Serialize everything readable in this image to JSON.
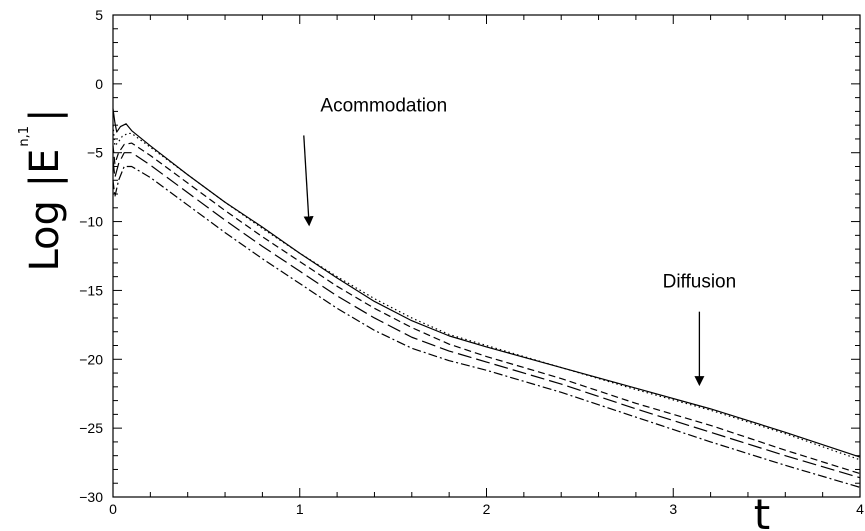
{
  "chart_data": {
    "type": "line",
    "title": "",
    "xlabel": "t",
    "ylabel": {
      "main": "Log |E",
      "superscript": "n,1",
      "close": "|"
    },
    "xlim": [
      0,
      4
    ],
    "ylim": [
      -30,
      5
    ],
    "x_ticks": [
      "0",
      "1",
      "2",
      "3",
      "4"
    ],
    "y_ticks": [
      "5",
      "0",
      "-5",
      "-10",
      "-15",
      "-20",
      "-25",
      "-30"
    ],
    "grid": false,
    "legend": "none",
    "series": [
      {
        "style": "solid",
        "x": [
          0,
          0.01,
          0.02,
          0.04,
          0.07,
          0.1,
          0.2,
          0.4,
          0.6,
          0.8,
          1.0,
          1.2,
          1.4,
          1.6,
          1.8,
          2.0,
          2.4,
          2.8,
          3.2,
          3.6,
          4.0
        ],
        "y": [
          -1.8,
          -2.8,
          -3.5,
          -3.1,
          -2.9,
          -3.4,
          -4.5,
          -6.6,
          -8.6,
          -10.4,
          -12.3,
          -14.1,
          -15.8,
          -17.2,
          -18.3,
          -19.1,
          -20.6,
          -22.1,
          -23.6,
          -25.3,
          -27.1
        ]
      },
      {
        "style": "dotted",
        "x": [
          0,
          0.01,
          0.03,
          0.05,
          0.08,
          0.1,
          0.2,
          0.4,
          0.6,
          0.8,
          1.0,
          1.2,
          1.4,
          1.6,
          1.8,
          2.0,
          2.4,
          2.8,
          3.2,
          3.6,
          4.0
        ],
        "y": [
          -3.0,
          -4.5,
          -4.2,
          -3.8,
          -3.6,
          -3.6,
          -4.6,
          -6.6,
          -8.6,
          -10.5,
          -12.3,
          -14.0,
          -15.6,
          -17.0,
          -18.2,
          -19.0,
          -20.6,
          -22.2,
          -23.7,
          -25.4,
          -27.3
        ]
      },
      {
        "style": "short-dash",
        "x": [
          0,
          0.01,
          0.03,
          0.06,
          0.1,
          0.2,
          0.4,
          0.6,
          0.8,
          1.0,
          1.2,
          1.4,
          1.6,
          1.8,
          2.0,
          2.4,
          2.8,
          3.2,
          3.6,
          4.0
        ],
        "y": [
          -4.5,
          -5.8,
          -5.0,
          -4.4,
          -4.3,
          -5.2,
          -7.2,
          -9.2,
          -11.1,
          -12.9,
          -14.7,
          -16.3,
          -17.7,
          -18.9,
          -19.8,
          -21.4,
          -23.2,
          -24.8,
          -26.6,
          -28.3
        ]
      },
      {
        "style": "long-dash",
        "x": [
          0,
          0.01,
          0.03,
          0.06,
          0.1,
          0.2,
          0.4,
          0.6,
          0.8,
          1.0,
          1.2,
          1.4,
          1.6,
          1.8,
          2.0,
          2.4,
          2.8,
          3.2,
          3.6,
          4.0
        ],
        "y": [
          -5.5,
          -6.8,
          -5.8,
          -5.0,
          -5.0,
          -5.9,
          -7.9,
          -9.9,
          -11.8,
          -13.6,
          -15.4,
          -17.0,
          -18.4,
          -19.4,
          -20.2,
          -21.8,
          -23.6,
          -25.3,
          -27.0,
          -28.6
        ]
      },
      {
        "style": "dash-dot",
        "x": [
          0,
          0.01,
          0.03,
          0.06,
          0.1,
          0.2,
          0.4,
          0.6,
          0.8,
          1.0,
          1.2,
          1.4,
          1.6,
          1.8,
          2.0,
          2.4,
          2.8,
          3.2,
          3.6,
          4.0
        ],
        "y": [
          -7.0,
          -8.2,
          -7.0,
          -6.0,
          -6.0,
          -6.8,
          -8.8,
          -10.8,
          -12.7,
          -14.5,
          -16.3,
          -17.9,
          -19.2,
          -20.1,
          -20.8,
          -22.4,
          -24.2,
          -26.0,
          -27.7,
          -29.3
        ]
      }
    ],
    "annotations": [
      {
        "text": "Acommodation",
        "arrow_to": {
          "x": 1.05,
          "y": -10.2
        },
        "label_at": {
          "x": 1.45,
          "y": -2.0
        }
      },
      {
        "text": "Diffusion",
        "arrow_to": {
          "x": 3.14,
          "y": -21.8
        },
        "label_at": {
          "x": 3.14,
          "y": -14.8
        }
      }
    ]
  }
}
